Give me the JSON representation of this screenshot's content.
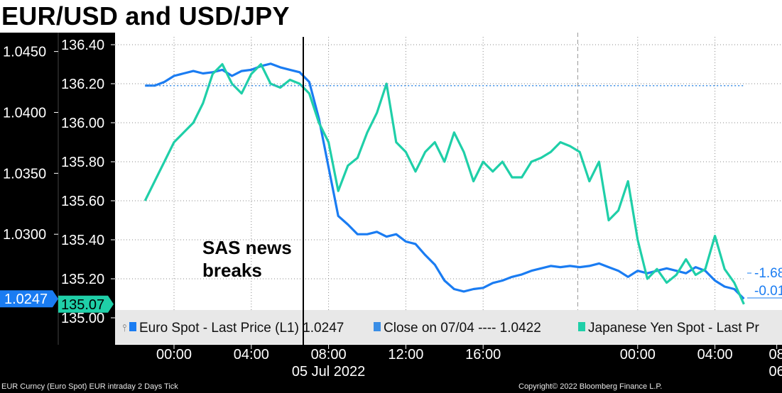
{
  "title": "EUR/USD and USD/JPY",
  "footer": {
    "source": "EUR Curncy (Euro Spot) EUR intraday 2 Days  Tick",
    "copyright": "Copyright© 2022 Bloomberg Finance L.P."
  },
  "annotation": "SAS news\nbreaks",
  "colors": {
    "eur": "#1a7cf2",
    "jpy": "#1fcfa8",
    "close": "#3a8ee6",
    "background": "#ffffff",
    "axis_background": "#000000"
  },
  "chart_data": {
    "type": "line",
    "title": "EUR/USD and USD/JPY",
    "x_tick_labels": [
      "00:00",
      "04:00",
      "08:00",
      "12:00",
      "16:00",
      "00:00",
      "04:00",
      "08"
    ],
    "date_labels": [
      "05 Jul 2022",
      "06"
    ],
    "left_axis": {
      "series": "Euro Spot",
      "range": [
        1.0225,
        1.0462
      ],
      "ticks": [
        "1.0450",
        "1.0400",
        "1.0350",
        "1.0300"
      ],
      "last_value_label": "1.0247"
    },
    "right_axis": {
      "series": "Japanese Yen Spot",
      "range": [
        134.96,
        136.44
      ],
      "ticks": [
        "136.40",
        "136.20",
        "136.00",
        "135.80",
        "135.60",
        "135.40",
        "135.20",
        "135.00"
      ],
      "last_value_label": "135.07"
    },
    "legend": [
      {
        "label": "Euro Spot - Last Price (L1) 1.0247",
        "color": "#1a7cf2"
      },
      {
        "label": "Close on 07/04 ---- 1.0422",
        "color": "#3a8ee6"
      },
      {
        "label": "Japanese Yen Spot - Last Pr",
        "color": "#1fcfa8"
      }
    ],
    "reference_line": {
      "label": "Close on 07/04",
      "value": 1.0422
    },
    "change_labels": [
      "-1.68",
      "-0.01"
    ],
    "series": [
      {
        "name": "Euro Spot",
        "axis": "left",
        "x": [
          -1.5,
          -1.0,
          -0.5,
          0.0,
          0.5,
          1.0,
          1.5,
          2.0,
          2.5,
          3.0,
          3.5,
          4.0,
          4.5,
          5.0,
          5.5,
          6.0,
          6.5,
          7.0,
          7.5,
          8.0,
          8.5,
          9.0,
          9.5,
          10.0,
          10.5,
          11.0,
          11.5,
          12.0,
          12.5,
          13.0,
          13.5,
          14.0,
          14.5,
          15.0,
          15.5,
          16.0,
          16.5,
          17.0,
          17.5,
          18.0,
          18.5,
          19.0,
          19.5,
          20.0,
          20.5,
          21.0,
          21.5,
          22.0,
          22.5,
          23.0,
          23.5,
          24.0,
          24.5,
          25.0,
          25.5,
          26.0,
          26.5,
          27.0,
          27.5,
          28.0,
          28.5,
          29.0,
          29.5
        ],
        "values": [
          1.0422,
          1.0422,
          1.0425,
          1.043,
          1.0432,
          1.0434,
          1.0432,
          1.0433,
          1.0435,
          1.043,
          1.0434,
          1.0435,
          1.0438,
          1.044,
          1.0437,
          1.0435,
          1.0433,
          1.0425,
          1.0395,
          1.0355,
          1.0315,
          1.0308,
          1.03,
          1.03,
          1.0302,
          1.0298,
          1.03,
          1.0294,
          1.0292,
          1.0283,
          1.0275,
          1.0262,
          1.0255,
          1.0253,
          1.0255,
          1.0256,
          1.026,
          1.0262,
          1.0265,
          1.0267,
          1.027,
          1.0272,
          1.0274,
          1.0273,
          1.0274,
          1.0273,
          1.0274,
          1.0276,
          1.0273,
          1.027,
          1.0265,
          1.027,
          1.0268,
          1.027,
          1.0272,
          1.027,
          1.0268,
          1.0273,
          1.027,
          1.0262,
          1.0257,
          1.0255,
          1.0247
        ]
      },
      {
        "name": "Japanese Yen Spot",
        "axis": "right",
        "x": [
          -1.5,
          -1.0,
          -0.5,
          0.0,
          0.5,
          1.0,
          1.5,
          2.0,
          2.5,
          3.0,
          3.5,
          4.0,
          4.5,
          5.0,
          5.5,
          6.0,
          6.5,
          7.0,
          7.5,
          8.0,
          8.5,
          9.0,
          9.5,
          10.0,
          10.5,
          11.0,
          11.5,
          12.0,
          12.5,
          13.0,
          13.5,
          14.0,
          14.5,
          15.0,
          15.5,
          16.0,
          16.5,
          17.0,
          17.5,
          18.0,
          18.5,
          19.0,
          19.5,
          20.0,
          20.5,
          21.0,
          21.5,
          22.0,
          22.5,
          23.0,
          23.5,
          24.0,
          24.5,
          25.0,
          25.5,
          26.0,
          26.5,
          27.0,
          27.5,
          28.0,
          28.5,
          29.0,
          29.5
        ],
        "values": [
          135.6,
          135.7,
          135.8,
          135.9,
          135.95,
          136.0,
          136.1,
          136.25,
          136.3,
          136.2,
          136.15,
          136.25,
          136.3,
          136.2,
          136.18,
          136.22,
          136.2,
          136.15,
          136.0,
          135.9,
          135.65,
          135.78,
          135.82,
          135.95,
          136.05,
          136.2,
          135.9,
          135.85,
          135.75,
          135.85,
          135.9,
          135.8,
          135.95,
          135.85,
          135.7,
          135.8,
          135.75,
          135.8,
          135.72,
          135.72,
          135.8,
          135.82,
          135.85,
          135.9,
          135.88,
          135.85,
          135.7,
          135.8,
          135.5,
          135.55,
          135.7,
          135.4,
          135.2,
          135.25,
          135.18,
          135.22,
          135.3,
          135.22,
          135.25,
          135.42,
          135.25,
          135.18,
          135.07
        ]
      },
      {
        "name": "Close on 07/04",
        "axis": "left",
        "x": [
          -1.5,
          29.5
        ],
        "values": [
          1.0422,
          1.0422
        ]
      }
    ]
  }
}
